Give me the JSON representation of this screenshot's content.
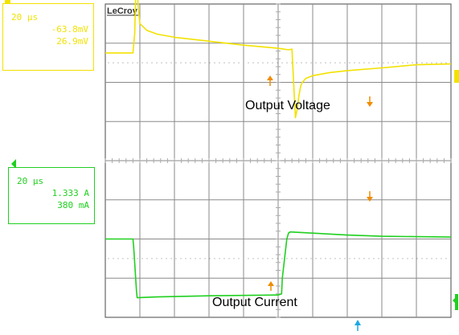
{
  "scope": {
    "brand": "LeCroy",
    "grid": {
      "divisions_x": 10,
      "divisions_y": 8,
      "major_color": "#8a8a8a",
      "minor_color": "#aaaaaa"
    }
  },
  "channels": {
    "ch1": {
      "marker": "1",
      "color": "#f2e200",
      "timebase": "20 µs",
      "offset": "-63.8mV",
      "scale": "26.9mV",
      "label": "Output Voltage"
    },
    "ch4": {
      "marker": "4",
      "color": "#1fd01f",
      "timebase": "20 µs",
      "offset": "1.333 A",
      "scale": "380 mA",
      "label": "Output Current"
    }
  },
  "markers": {
    "cursor_color": "#f08c00",
    "trigger_color": "#1aa9e6",
    "ch1_right_marker": "1",
    "ch4_right_marker": "4"
  },
  "chart_data": {
    "type": "line",
    "x_unit": "div",
    "xlim": [
      0,
      10
    ],
    "series": [
      {
        "name": "Output Voltage",
        "color": "#f2e200",
        "y_unit": "div",
        "x": [
          0,
          0.1,
          0.5,
          0.8,
          0.85,
          0.88,
          0.9,
          0.93,
          0.95,
          1.0,
          1.2,
          1.5,
          2.0,
          3.0,
          4.0,
          5.0,
          5.3,
          5.4,
          5.45,
          5.5,
          5.55,
          5.6,
          5.65,
          5.7,
          5.8,
          6.0,
          6.5,
          7.0,
          8.0,
          9.0,
          10.0
        ],
        "y": [
          0.0,
          0.0,
          0.0,
          0.0,
          0.5,
          1.5,
          1.85,
          1.6,
          1.2,
          0.75,
          0.58,
          0.48,
          0.4,
          0.3,
          0.2,
          0.12,
          0.08,
          0.1,
          -0.8,
          -1.65,
          -1.45,
          -1.1,
          -0.85,
          -0.75,
          -0.65,
          -0.58,
          -0.5,
          -0.45,
          -0.38,
          -0.3,
          -0.28
        ]
      },
      {
        "name": "Output Current",
        "color": "#1fd01f",
        "y_unit": "div",
        "x": [
          0,
          0.5,
          0.8,
          0.82,
          0.9,
          0.92,
          1.5,
          3.0,
          5.0,
          5.1,
          5.12,
          5.25,
          5.3,
          5.35,
          6.0,
          7.0,
          8.0,
          10.0
        ],
        "y": [
          -2.0,
          -2.0,
          -2.0,
          -2.2,
          -3.3,
          -3.5,
          -3.48,
          -3.45,
          -3.43,
          -3.4,
          -3.0,
          -2.0,
          -1.85,
          -1.82,
          -1.85,
          -1.9,
          -1.93,
          -1.95
        ]
      }
    ]
  }
}
